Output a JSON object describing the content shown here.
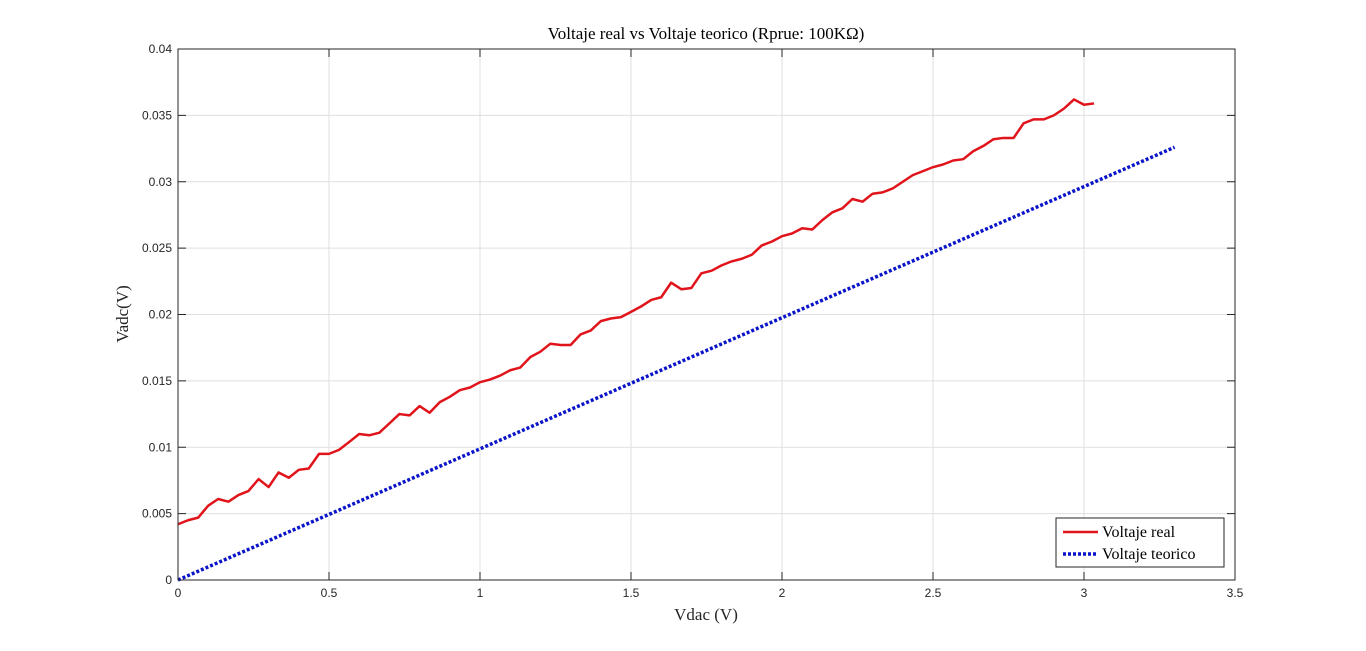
{
  "chart_data": {
    "type": "line",
    "title": "Voltaje real vs Voltaje teorico (Rprue: 100KΩ)",
    "xlabel": "Vdac (V)",
    "ylabel": "Vadc(V)",
    "xlim": [
      0,
      3.5
    ],
    "ylim": [
      0,
      0.04
    ],
    "xticks": [
      0,
      0.5,
      1,
      1.5,
      2,
      2.5,
      3,
      3.5
    ],
    "xtick_labels": [
      "0",
      "0.5",
      "1",
      "1.5",
      "2",
      "2.5",
      "3",
      "3.5"
    ],
    "yticks": [
      0,
      0.005,
      0.01,
      0.015,
      0.02,
      0.025,
      0.03,
      0.035,
      0.04
    ],
    "ytick_labels": [
      "0",
      "0.005",
      "0.01",
      "0.015",
      "0.02",
      "0.025",
      "0.03",
      "0.035",
      "0.04"
    ],
    "grid": true,
    "legend_position": "bottom-right",
    "series": [
      {
        "name": "Voltaje real",
        "color": "#e0141a",
        "style": "solid",
        "points": [
          [
            0.0,
            0.0042
          ],
          [
            0.033,
            0.0045
          ],
          [
            0.067,
            0.0047
          ],
          [
            0.1,
            0.0056
          ],
          [
            0.133,
            0.0061
          ],
          [
            0.167,
            0.0059
          ],
          [
            0.2,
            0.0064
          ],
          [
            0.233,
            0.0067
          ],
          [
            0.267,
            0.0076
          ],
          [
            0.3,
            0.007
          ],
          [
            0.333,
            0.0081
          ],
          [
            0.367,
            0.0077
          ],
          [
            0.4,
            0.0083
          ],
          [
            0.433,
            0.0084
          ],
          [
            0.467,
            0.0095
          ],
          [
            0.5,
            0.0095
          ],
          [
            0.533,
            0.0098
          ],
          [
            0.567,
            0.0104
          ],
          [
            0.6,
            0.011
          ],
          [
            0.633,
            0.0109
          ],
          [
            0.667,
            0.0111
          ],
          [
            0.7,
            0.0118
          ],
          [
            0.733,
            0.0125
          ],
          [
            0.767,
            0.0124
          ],
          [
            0.8,
            0.0131
          ],
          [
            0.833,
            0.0126
          ],
          [
            0.867,
            0.0134
          ],
          [
            0.9,
            0.0138
          ],
          [
            0.933,
            0.0143
          ],
          [
            0.967,
            0.0145
          ],
          [
            1.0,
            0.0149
          ],
          [
            1.033,
            0.0151
          ],
          [
            1.067,
            0.0154
          ],
          [
            1.1,
            0.0158
          ],
          [
            1.133,
            0.016
          ],
          [
            1.167,
            0.0168
          ],
          [
            1.2,
            0.0172
          ],
          [
            1.233,
            0.0178
          ],
          [
            1.267,
            0.0177
          ],
          [
            1.3,
            0.0177
          ],
          [
            1.333,
            0.0185
          ],
          [
            1.367,
            0.0188
          ],
          [
            1.4,
            0.0195
          ],
          [
            1.433,
            0.0197
          ],
          [
            1.467,
            0.0198
          ],
          [
            1.5,
            0.0202
          ],
          [
            1.533,
            0.0206
          ],
          [
            1.567,
            0.0211
          ],
          [
            1.6,
            0.0213
          ],
          [
            1.633,
            0.0224
          ],
          [
            1.667,
            0.0219
          ],
          [
            1.7,
            0.022
          ],
          [
            1.733,
            0.0231
          ],
          [
            1.767,
            0.0233
          ],
          [
            1.8,
            0.0237
          ],
          [
            1.833,
            0.024
          ],
          [
            1.867,
            0.0242
          ],
          [
            1.9,
            0.0245
          ],
          [
            1.933,
            0.0252
          ],
          [
            1.967,
            0.0255
          ],
          [
            2.0,
            0.0259
          ],
          [
            2.033,
            0.0261
          ],
          [
            2.067,
            0.0265
          ],
          [
            2.1,
            0.0264
          ],
          [
            2.133,
            0.0271
          ],
          [
            2.167,
            0.0277
          ],
          [
            2.2,
            0.028
          ],
          [
            2.233,
            0.0287
          ],
          [
            2.267,
            0.0285
          ],
          [
            2.3,
            0.0291
          ],
          [
            2.333,
            0.0292
          ],
          [
            2.367,
            0.0295
          ],
          [
            2.4,
            0.03
          ],
          [
            2.433,
            0.0305
          ],
          [
            2.467,
            0.0308
          ],
          [
            2.5,
            0.0311
          ],
          [
            2.533,
            0.0313
          ],
          [
            2.567,
            0.0316
          ],
          [
            2.6,
            0.0317
          ],
          [
            2.633,
            0.0323
          ],
          [
            2.667,
            0.0327
          ],
          [
            2.7,
            0.0332
          ],
          [
            2.733,
            0.0333
          ],
          [
            2.767,
            0.0333
          ],
          [
            2.8,
            0.0344
          ],
          [
            2.833,
            0.0347
          ],
          [
            2.867,
            0.0347
          ],
          [
            2.9,
            0.035
          ],
          [
            2.933,
            0.0355
          ],
          [
            2.967,
            0.0362
          ],
          [
            3.0,
            0.0358
          ],
          [
            3.033,
            0.0359
          ]
        ]
      },
      {
        "name": "Voltaje teorico",
        "color": "#0a14c8",
        "style": "dotted",
        "points": [
          [
            0.0,
            0.0
          ],
          [
            3.3,
            0.0326
          ]
        ]
      }
    ]
  }
}
